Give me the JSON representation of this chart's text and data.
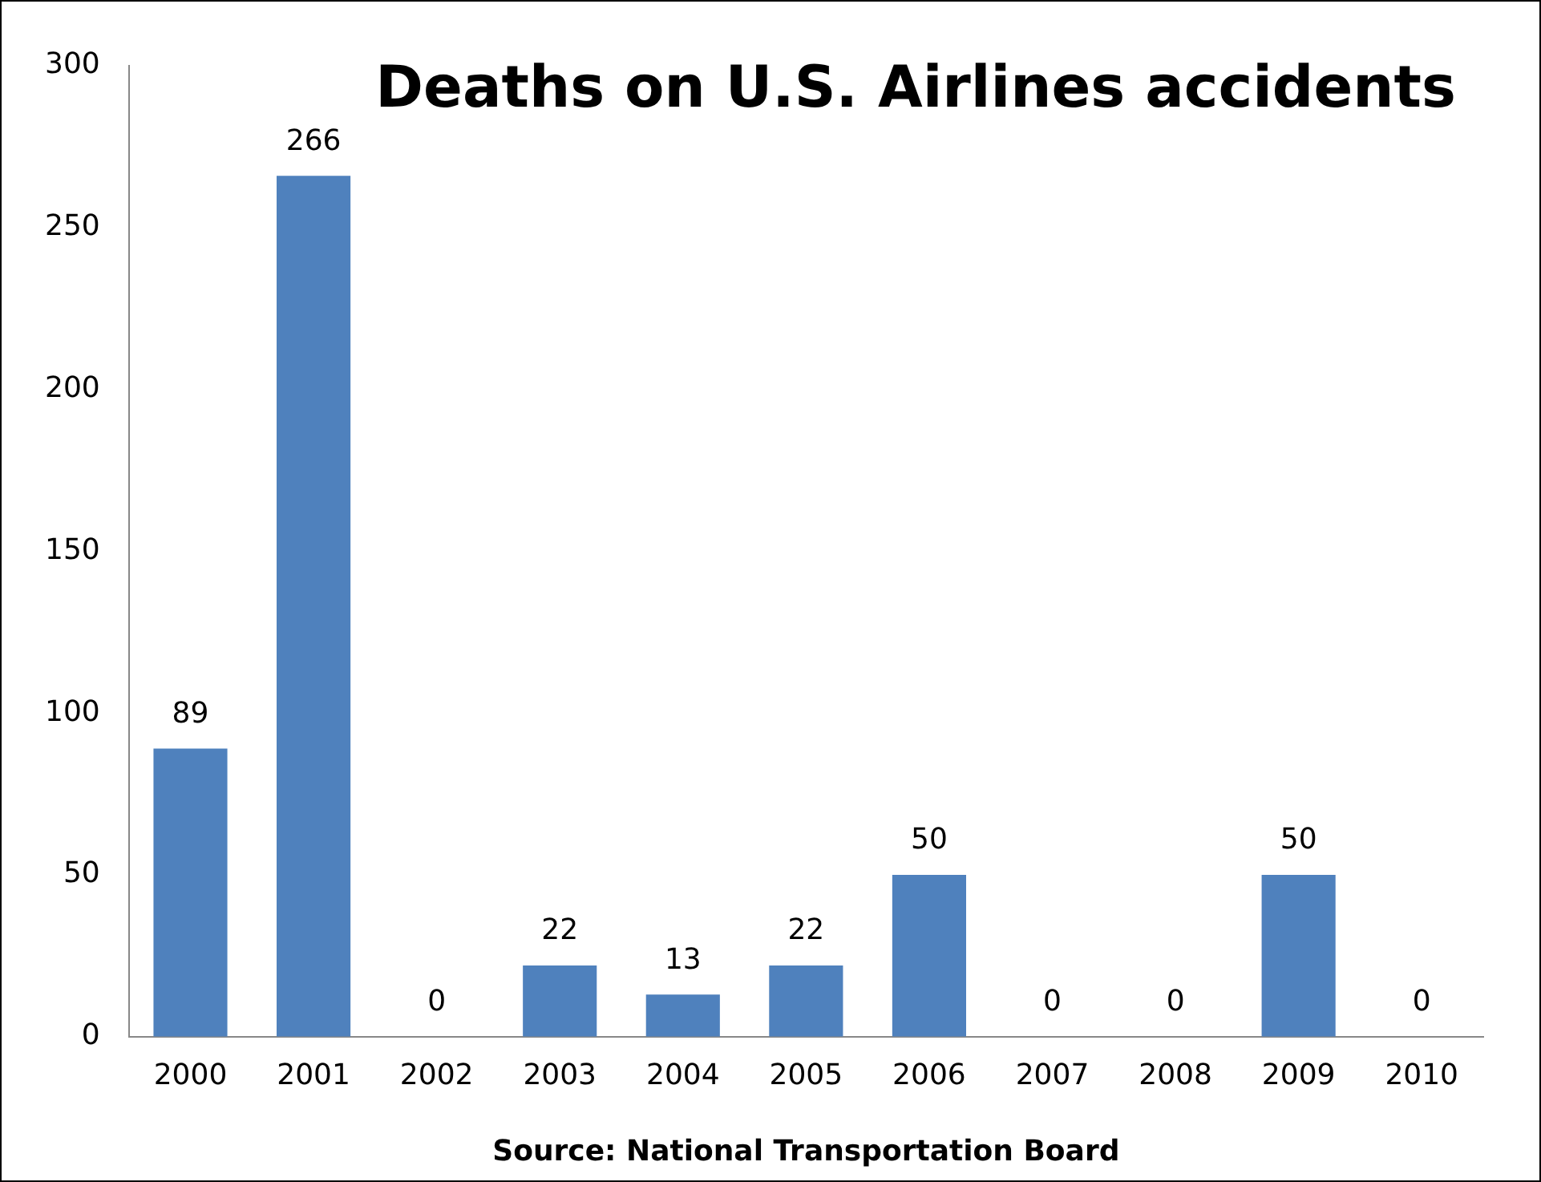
{
  "chart_data": {
    "type": "bar",
    "title": "Deaths on U.S. Airlines accidents",
    "categories": [
      "2000",
      "2001",
      "2002",
      "2003",
      "2004",
      "2005",
      "2006",
      "2007",
      "2008",
      "2009",
      "2010"
    ],
    "values": [
      89,
      266,
      0,
      22,
      13,
      22,
      50,
      0,
      0,
      50,
      0
    ],
    "color": "#4f81bd",
    "ylim": [
      0,
      300
    ],
    "yticks": [
      0,
      50,
      100,
      150,
      200,
      250,
      300
    ],
    "grid": false,
    "data_labels": true,
    "annotations": [
      "Source: National Transportation Board"
    ]
  }
}
